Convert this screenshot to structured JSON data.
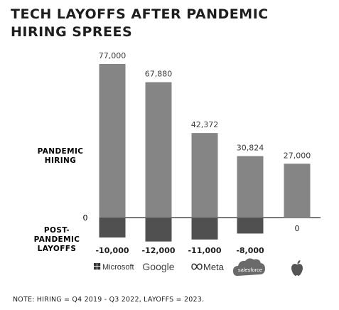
{
  "title_lines": [
    "TECH LAYOFFS AFTER PANDEMIC",
    "HIRING SPREES"
  ],
  "footnote": "NOTE: HIRING = Q4 2019 - Q3 2022, LAYOFFS = 2023.",
  "chart_data": {
    "type": "bar",
    "title": "TECH LAYOFFS AFTER PANDEMIC HIRING SPREES",
    "categories": [
      "Microsoft",
      "Google",
      "Meta",
      "salesforce",
      "Apple"
    ],
    "series": [
      {
        "name": "PANDEMIC HIRING",
        "values": [
          77000,
          67880,
          42372,
          30824,
          27000
        ],
        "labels": [
          "77,000",
          "67,880",
          "42,372",
          "30,824",
          "27,000"
        ],
        "color": "#858585"
      },
      {
        "name": "POST-PANDEMIC LAYOFFS",
        "values": [
          -10000,
          -12000,
          -11000,
          -8000,
          0
        ],
        "labels": [
          "-10,000",
          "-12,000",
          "-11,000",
          "-8,000",
          "0"
        ],
        "color": "#505050"
      }
    ],
    "section_labels": [
      [
        "PANDEMIC",
        "HIRING"
      ],
      [
        "POST-",
        "PANDEMIC",
        "LAYOFFS"
      ]
    ],
    "zero_label": "0",
    "ylim": [
      -12500,
      80000
    ],
    "grid": false,
    "legend": "none",
    "logo_text": [
      "Microsoft",
      "Google",
      "Meta",
      "salesforce",
      ""
    ]
  }
}
